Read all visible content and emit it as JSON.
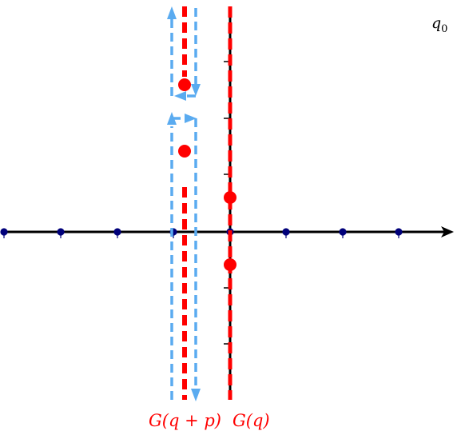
{
  "labels": {
    "corner": "q",
    "corner_sub": "0",
    "g_shifted": "G(q + p)",
    "g": "G(q)"
  },
  "colors": {
    "axis": "#000000",
    "poles": "#ff0000",
    "cuts": "#ff0000",
    "contour": "#5aabf0",
    "ticks": "#00007a",
    "label_red": "#ff0000"
  },
  "icons": {
    "contour_arrows": "arrowhead-icon"
  }
}
